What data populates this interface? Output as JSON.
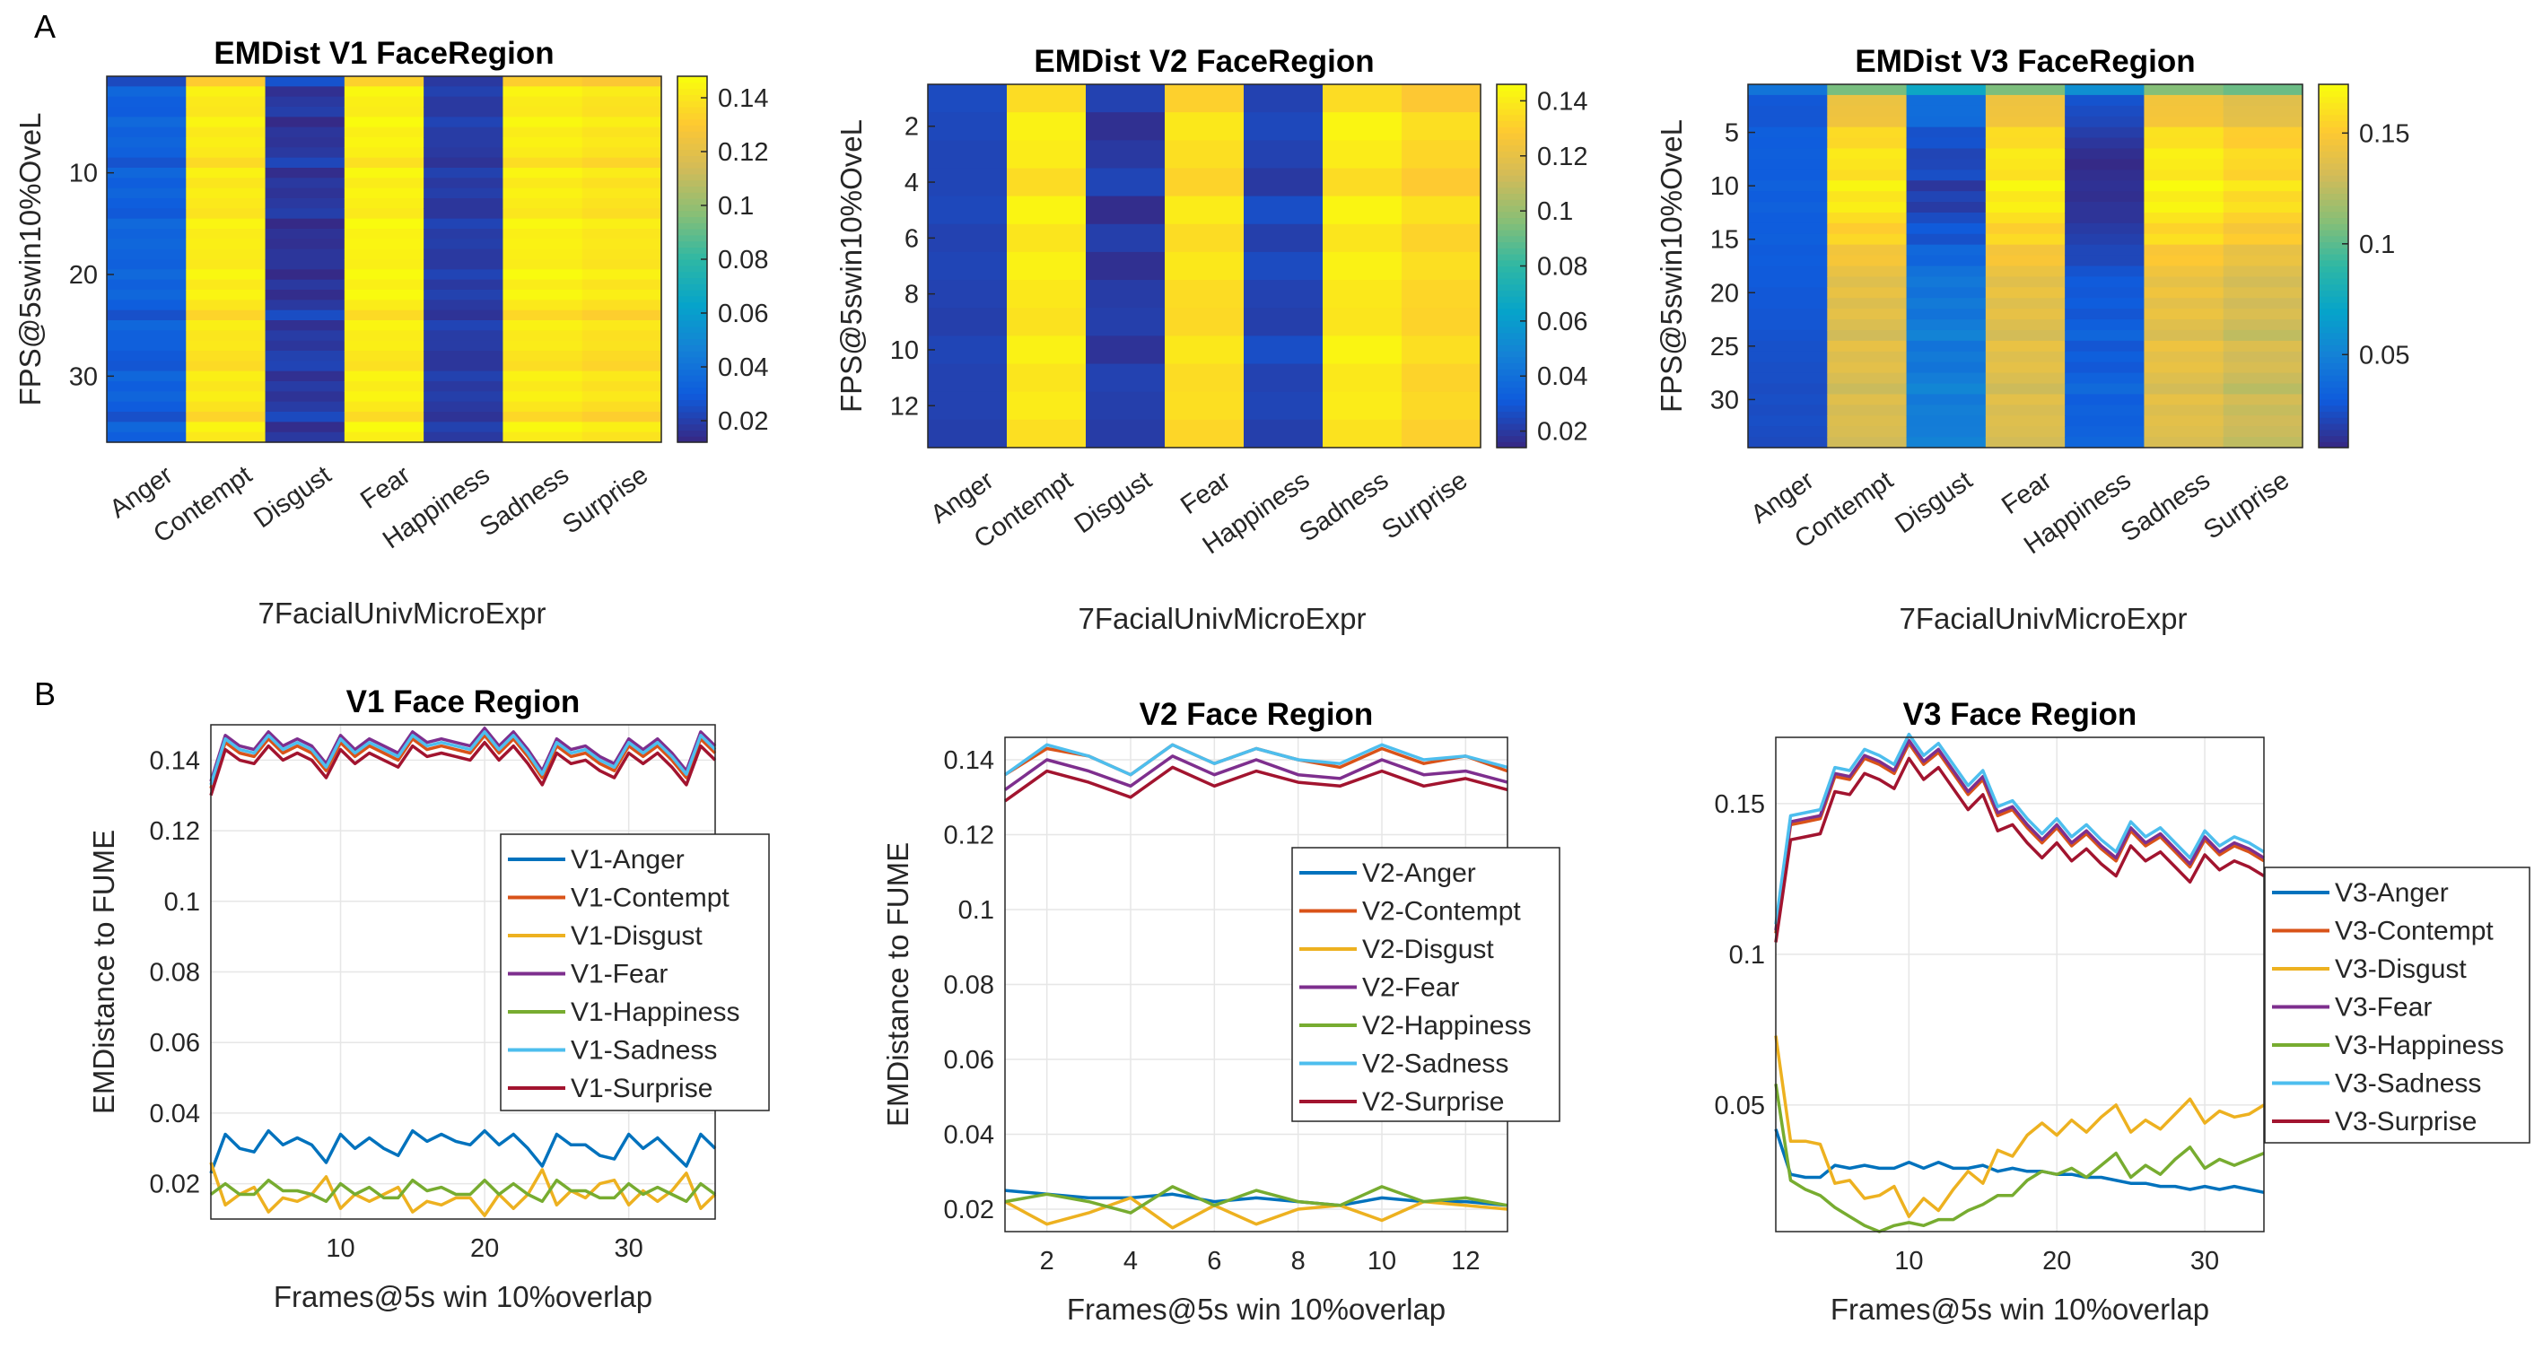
{
  "panels": {
    "a": "A",
    "b": "B"
  },
  "colors": {
    "Anger": "#0072BD",
    "Contempt": "#D95319",
    "Disgust": "#EDB120",
    "Fear": "#7E2F8E",
    "Happiness": "#77AC30",
    "Sadness": "#4DBEEE",
    "Surprise": "#A2142F"
  },
  "chart_data": [
    {
      "type": "heatmap",
      "id": "hm1",
      "title": "EMDist V1 FaceRegion",
      "xlabel": "7FacialUnivMicroExpr",
      "ylabel": "FPS@5swin10%OveL",
      "categories": [
        "Anger",
        "Contempt",
        "Disgust",
        "Fear",
        "Happiness",
        "Sadness",
        "Surprise"
      ],
      "rows": 36,
      "yticks": [
        10,
        20,
        30
      ],
      "clim": [
        0.012,
        0.148
      ],
      "colorbar_ticks": [
        "0.02",
        "0.04",
        "0.06",
        "0.08",
        "0.1",
        "0.12",
        "0.14"
      ],
      "values_from": "lc1",
      "colormap": "parula"
    },
    {
      "type": "heatmap",
      "id": "hm2",
      "title": "EMDist V2 FaceRegion",
      "xlabel": "7FacialUnivMicroExpr",
      "ylabel": "FPS@5swin10%OveL",
      "categories": [
        "Anger",
        "Contempt",
        "Disgust",
        "Fear",
        "Happiness",
        "Sadness",
        "Surprise"
      ],
      "rows": 13,
      "yticks": [
        2,
        4,
        6,
        8,
        10,
        12
      ],
      "clim": [
        0.014,
        0.146
      ],
      "colorbar_ticks": [
        "0.02",
        "0.04",
        "0.06",
        "0.08",
        "0.1",
        "0.12",
        "0.14"
      ],
      "values_from": "lc2",
      "colormap": "parula"
    },
    {
      "type": "heatmap",
      "id": "hm3",
      "title": "EMDist V3 FaceRegion",
      "xlabel": "7FacialUnivMicroExpr",
      "ylabel": "FPS@5swin10%OveL",
      "categories": [
        "Anger",
        "Contempt",
        "Disgust",
        "Fear",
        "Happiness",
        "Sadness",
        "Surprise"
      ],
      "rows": 34,
      "yticks": [
        5,
        10,
        15,
        20,
        25,
        30
      ],
      "clim": [
        0.008,
        0.172
      ],
      "colorbar_ticks": [
        "0.05",
        "0.1",
        "0.15"
      ],
      "values_from": "lc3",
      "colormap": "parula"
    },
    {
      "type": "line",
      "id": "lc1",
      "title": "V1 Face Region",
      "xlabel": "Frames@5s win 10%overlap",
      "ylabel": "EMDistance to FUME",
      "xlim": [
        1,
        36
      ],
      "ylim": [
        0.01,
        0.15
      ],
      "xticks": [
        10,
        20,
        30
      ],
      "yticks": [
        "0.02",
        "0.04",
        "0.06",
        "0.08",
        "0.1",
        "0.12",
        "0.14"
      ],
      "grid": true,
      "legend": "center-right",
      "series": [
        {
          "name": "V1-Anger",
          "key": "Anger",
          "values": [
            0.023,
            0.034,
            0.03,
            0.029,
            0.035,
            0.031,
            0.033,
            0.031,
            0.026,
            0.034,
            0.03,
            0.033,
            0.03,
            0.028,
            0.035,
            0.032,
            0.034,
            0.032,
            0.031,
            0.035,
            0.031,
            0.034,
            0.03,
            0.025,
            0.034,
            0.031,
            0.031,
            0.028,
            0.027,
            0.034,
            0.03,
            0.033,
            0.029,
            0.025,
            0.034,
            0.03
          ]
        },
        {
          "name": "V1-Contempt",
          "key": "Contempt",
          "values": [
            0.132,
            0.145,
            0.142,
            0.141,
            0.146,
            0.142,
            0.144,
            0.142,
            0.137,
            0.145,
            0.141,
            0.144,
            0.142,
            0.14,
            0.146,
            0.143,
            0.144,
            0.143,
            0.142,
            0.147,
            0.142,
            0.146,
            0.141,
            0.135,
            0.144,
            0.141,
            0.142,
            0.139,
            0.137,
            0.144,
            0.141,
            0.144,
            0.14,
            0.135,
            0.146,
            0.142
          ]
        },
        {
          "name": "V1-Disgust",
          "key": "Disgust",
          "values": [
            0.026,
            0.014,
            0.017,
            0.019,
            0.012,
            0.016,
            0.015,
            0.017,
            0.022,
            0.013,
            0.017,
            0.015,
            0.017,
            0.019,
            0.012,
            0.015,
            0.014,
            0.016,
            0.016,
            0.011,
            0.017,
            0.013,
            0.017,
            0.024,
            0.014,
            0.018,
            0.016,
            0.02,
            0.021,
            0.014,
            0.018,
            0.015,
            0.018,
            0.023,
            0.013,
            0.017
          ]
        },
        {
          "name": "V1-Fear",
          "key": "Fear",
          "values": [
            0.134,
            0.147,
            0.144,
            0.143,
            0.148,
            0.144,
            0.146,
            0.144,
            0.139,
            0.147,
            0.143,
            0.146,
            0.144,
            0.142,
            0.148,
            0.145,
            0.146,
            0.145,
            0.144,
            0.149,
            0.144,
            0.148,
            0.143,
            0.137,
            0.146,
            0.143,
            0.144,
            0.141,
            0.139,
            0.146,
            0.143,
            0.146,
            0.142,
            0.137,
            0.148,
            0.144
          ]
        },
        {
          "name": "V1-Happiness",
          "key": "Happiness",
          "values": [
            0.017,
            0.02,
            0.017,
            0.017,
            0.021,
            0.018,
            0.018,
            0.017,
            0.015,
            0.02,
            0.017,
            0.019,
            0.016,
            0.016,
            0.021,
            0.018,
            0.019,
            0.017,
            0.017,
            0.021,
            0.017,
            0.02,
            0.017,
            0.015,
            0.021,
            0.018,
            0.018,
            0.016,
            0.016,
            0.02,
            0.017,
            0.019,
            0.017,
            0.015,
            0.02,
            0.017
          ]
        },
        {
          "name": "V1-Sadness",
          "key": "Sadness",
          "values": [
            0.133,
            0.146,
            0.143,
            0.142,
            0.147,
            0.143,
            0.145,
            0.143,
            0.138,
            0.146,
            0.142,
            0.145,
            0.143,
            0.141,
            0.147,
            0.144,
            0.145,
            0.144,
            0.143,
            0.148,
            0.143,
            0.147,
            0.142,
            0.136,
            0.145,
            0.142,
            0.143,
            0.14,
            0.138,
            0.145,
            0.142,
            0.145,
            0.141,
            0.136,
            0.147,
            0.143
          ]
        },
        {
          "name": "V1-Surprise",
          "key": "Surprise",
          "values": [
            0.13,
            0.143,
            0.14,
            0.139,
            0.144,
            0.14,
            0.142,
            0.14,
            0.135,
            0.143,
            0.139,
            0.142,
            0.14,
            0.138,
            0.144,
            0.141,
            0.142,
            0.141,
            0.14,
            0.145,
            0.14,
            0.144,
            0.139,
            0.133,
            0.142,
            0.139,
            0.14,
            0.137,
            0.135,
            0.142,
            0.139,
            0.142,
            0.138,
            0.133,
            0.144,
            0.14
          ]
        }
      ]
    },
    {
      "type": "line",
      "id": "lc2",
      "title": "V2 Face Region",
      "xlabel": "Frames@5s win 10%overlap",
      "ylabel": "EMDistance to FUME",
      "xlim": [
        1,
        13
      ],
      "ylim": [
        0.014,
        0.146
      ],
      "xticks": [
        2,
        4,
        6,
        8,
        10,
        12
      ],
      "yticks": [
        "0.02",
        "0.04",
        "0.06",
        "0.08",
        "0.1",
        "0.12",
        "0.14"
      ],
      "grid": true,
      "legend": "center-right",
      "series": [
        {
          "name": "V2-Anger",
          "key": "Anger",
          "values": [
            0.025,
            0.024,
            0.023,
            0.023,
            0.024,
            0.022,
            0.023,
            0.022,
            0.021,
            0.023,
            0.022,
            0.022,
            0.021
          ]
        },
        {
          "name": "V2-Contempt",
          "key": "Contempt",
          "values": [
            0.136,
            0.143,
            0.141,
            0.136,
            0.144,
            0.139,
            0.143,
            0.14,
            0.138,
            0.143,
            0.139,
            0.141,
            0.137
          ]
        },
        {
          "name": "V2-Disgust",
          "key": "Disgust",
          "values": [
            0.022,
            0.016,
            0.019,
            0.023,
            0.015,
            0.021,
            0.016,
            0.02,
            0.021,
            0.017,
            0.022,
            0.021,
            0.02
          ]
        },
        {
          "name": "V2-Fear",
          "key": "Fear",
          "values": [
            0.132,
            0.14,
            0.137,
            0.133,
            0.141,
            0.136,
            0.14,
            0.136,
            0.135,
            0.14,
            0.136,
            0.137,
            0.134
          ]
        },
        {
          "name": "V2-Happiness",
          "key": "Happiness",
          "values": [
            0.022,
            0.024,
            0.022,
            0.019,
            0.026,
            0.021,
            0.025,
            0.022,
            0.021,
            0.026,
            0.022,
            0.023,
            0.021
          ]
        },
        {
          "name": "V2-Sadness",
          "key": "Sadness",
          "values": [
            0.136,
            0.144,
            0.141,
            0.136,
            0.144,
            0.139,
            0.143,
            0.14,
            0.139,
            0.144,
            0.14,
            0.141,
            0.138
          ]
        },
        {
          "name": "V2-Surprise",
          "key": "Surprise",
          "values": [
            0.129,
            0.137,
            0.134,
            0.13,
            0.138,
            0.133,
            0.137,
            0.134,
            0.133,
            0.137,
            0.133,
            0.135,
            0.132
          ]
        }
      ]
    },
    {
      "type": "line",
      "id": "lc3",
      "title": "V3 Face Region",
      "xlabel": "Frames@5s win 10%overlap",
      "ylabel": "",
      "xlim": [
        1,
        34
      ],
      "ylim": [
        0.008,
        0.172
      ],
      "xticks": [
        10,
        20,
        30
      ],
      "yticks": [
        "0.05",
        "0.1",
        "0.15"
      ],
      "grid": true,
      "legend": "outside-right",
      "series": [
        {
          "name": "V3-Anger",
          "key": "Anger",
          "values": [
            0.042,
            0.027,
            0.026,
            0.026,
            0.03,
            0.029,
            0.03,
            0.029,
            0.029,
            0.031,
            0.029,
            0.031,
            0.029,
            0.029,
            0.03,
            0.028,
            0.029,
            0.028,
            0.028,
            0.027,
            0.027,
            0.026,
            0.026,
            0.025,
            0.024,
            0.024,
            0.023,
            0.023,
            0.022,
            0.023,
            0.022,
            0.023,
            0.022,
            0.021
          ]
        },
        {
          "name": "V3-Contempt",
          "key": "Contempt",
          "values": [
            0.107,
            0.143,
            0.144,
            0.145,
            0.159,
            0.158,
            0.165,
            0.163,
            0.16,
            0.17,
            0.163,
            0.167,
            0.16,
            0.153,
            0.158,
            0.146,
            0.148,
            0.142,
            0.137,
            0.142,
            0.136,
            0.14,
            0.135,
            0.131,
            0.141,
            0.136,
            0.139,
            0.134,
            0.129,
            0.138,
            0.133,
            0.136,
            0.134,
            0.131
          ]
        },
        {
          "name": "V3-Disgust",
          "key": "Disgust",
          "values": [
            0.073,
            0.038,
            0.038,
            0.037,
            0.024,
            0.025,
            0.019,
            0.02,
            0.023,
            0.013,
            0.019,
            0.015,
            0.022,
            0.028,
            0.024,
            0.035,
            0.033,
            0.04,
            0.044,
            0.04,
            0.045,
            0.041,
            0.046,
            0.05,
            0.041,
            0.045,
            0.042,
            0.047,
            0.052,
            0.044,
            0.048,
            0.046,
            0.047,
            0.05
          ]
        },
        {
          "name": "V3-Fear",
          "key": "Fear",
          "values": [
            0.108,
            0.144,
            0.145,
            0.146,
            0.16,
            0.159,
            0.166,
            0.164,
            0.161,
            0.171,
            0.164,
            0.168,
            0.161,
            0.154,
            0.159,
            0.147,
            0.149,
            0.143,
            0.138,
            0.143,
            0.137,
            0.141,
            0.136,
            0.132,
            0.142,
            0.137,
            0.14,
            0.135,
            0.13,
            0.139,
            0.134,
            0.137,
            0.135,
            0.132
          ]
        },
        {
          "name": "V3-Happiness",
          "key": "Happiness",
          "values": [
            0.057,
            0.025,
            0.022,
            0.02,
            0.016,
            0.013,
            0.01,
            0.008,
            0.01,
            0.011,
            0.01,
            0.012,
            0.012,
            0.015,
            0.017,
            0.02,
            0.02,
            0.025,
            0.028,
            0.027,
            0.029,
            0.026,
            0.03,
            0.034,
            0.026,
            0.03,
            0.027,
            0.032,
            0.036,
            0.029,
            0.032,
            0.03,
            0.032,
            0.034
          ]
        },
        {
          "name": "V3-Sadness",
          "key": "Sadness",
          "values": [
            0.11,
            0.146,
            0.147,
            0.148,
            0.162,
            0.161,
            0.168,
            0.166,
            0.163,
            0.173,
            0.166,
            0.17,
            0.163,
            0.156,
            0.161,
            0.149,
            0.151,
            0.145,
            0.14,
            0.145,
            0.139,
            0.143,
            0.138,
            0.134,
            0.144,
            0.139,
            0.142,
            0.137,
            0.132,
            0.141,
            0.136,
            0.139,
            0.137,
            0.134
          ]
        },
        {
          "name": "V3-Surprise",
          "key": "Surprise",
          "values": [
            0.104,
            0.138,
            0.139,
            0.14,
            0.154,
            0.153,
            0.16,
            0.158,
            0.155,
            0.165,
            0.158,
            0.162,
            0.155,
            0.148,
            0.153,
            0.141,
            0.143,
            0.137,
            0.132,
            0.137,
            0.131,
            0.135,
            0.13,
            0.126,
            0.136,
            0.131,
            0.134,
            0.129,
            0.124,
            0.133,
            0.128,
            0.131,
            0.129,
            0.126
          ]
        }
      ]
    }
  ]
}
